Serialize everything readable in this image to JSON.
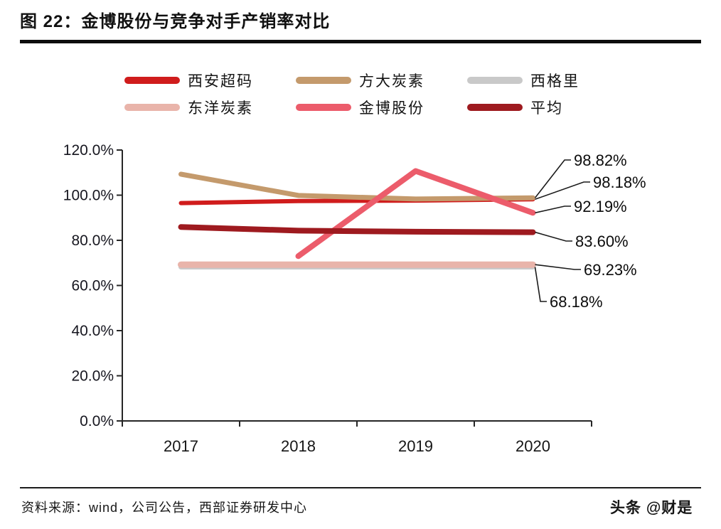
{
  "figure": {
    "title": "图 22：金博股份与竞争对手产销率对比",
    "source": "资料来源：wind，公司公告，西部证券研发中心",
    "watermark": "头条 @财是"
  },
  "chart_data": {
    "type": "line",
    "title": "金博股份与竞争对手产销率对比",
    "categories": [
      "2017",
      "2018",
      "2019",
      "2020"
    ],
    "xlabel": "",
    "ylabel": "",
    "ylim": [
      0,
      120
    ],
    "ytick_step": 20,
    "yticks": [
      "0.0%",
      "20.0%",
      "40.0%",
      "60.0%",
      "80.0%",
      "100.0%",
      "120.0%"
    ],
    "grid": false,
    "legend_position": "top",
    "value_unit": "percent",
    "series": [
      {
        "name": "西安超码",
        "color": "#d01c1c",
        "line_width": 6,
        "values": [
          96.5,
          97.4,
          97.6,
          98.18
        ],
        "end_label": "98.18%"
      },
      {
        "name": "方大炭素",
        "color": "#c49a6c",
        "line_width": 7,
        "values": [
          109.3,
          99.9,
          98.3,
          98.82
        ],
        "end_label": "98.82%"
      },
      {
        "name": "西格里",
        "color": "#c9c9c9",
        "line_width": 7,
        "values": [
          68.18,
          68.18,
          68.18,
          68.18
        ],
        "end_label": "68.18%"
      },
      {
        "name": "东洋炭素",
        "color": "#e9b4aa",
        "line_width": 9,
        "values": [
          69.23,
          69.23,
          69.23,
          69.23
        ],
        "end_label": "69.23%"
      },
      {
        "name": "金博股份",
        "color": "#ec5c6b",
        "line_width": 8,
        "values": [
          null,
          73.0,
          110.7,
          92.19
        ],
        "end_label": "92.19%"
      },
      {
        "name": "平均",
        "color": "#9e1a1f",
        "line_width": 8,
        "values": [
          85.9,
          84.3,
          83.8,
          83.6
        ],
        "end_label": "83.60%"
      }
    ]
  }
}
